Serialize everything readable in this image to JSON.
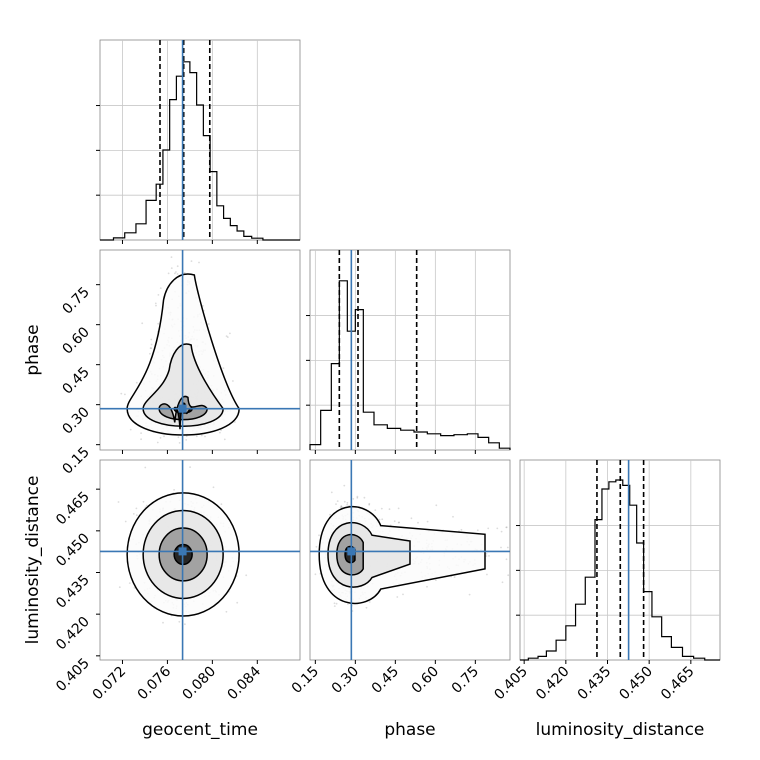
{
  "chart_data": {
    "type": "corner",
    "truth_color": "#3a77b4",
    "quantile_color": "#000000",
    "parameters": [
      {
        "name": "geocent_time",
        "range": [
          0.07,
          0.0878
        ],
        "ticks": [
          "0.072",
          "0.076",
          "0.080",
          "0.084"
        ],
        "truth": 0.07735,
        "quantiles": [
          0.07534,
          0.07745,
          0.07977
        ],
        "histogram": {
          "bin_edges": [
            0.07,
            0.0712,
            0.0722,
            0.0732,
            0.0741,
            0.075,
            0.0756,
            0.0762,
            0.0768,
            0.0774,
            0.078,
            0.0786,
            0.0792,
            0.0798,
            0.0804,
            0.081,
            0.0816,
            0.0822,
            0.0828,
            0.0835,
            0.0845,
            0.0855,
            0.0878
          ],
          "counts": [
            0.0,
            0.012,
            0.04,
            0.09,
            0.22,
            0.31,
            0.5,
            0.78,
            0.91,
            0.99,
            0.93,
            0.75,
            0.58,
            0.38,
            0.19,
            0.12,
            0.08,
            0.05,
            0.02,
            0.01,
            0.0,
            0.0
          ]
        }
      },
      {
        "name": "phase",
        "range": [
          0.13,
          0.88
        ],
        "ticks": [
          "0.15",
          "0.30",
          "0.45",
          "0.60",
          "0.75"
        ],
        "truth": 0.285,
        "quantiles": [
          0.24,
          0.31,
          0.53
        ],
        "histogram": {
          "bin_edges": [
            0.13,
            0.17,
            0.21,
            0.24,
            0.27,
            0.3,
            0.33,
            0.37,
            0.42,
            0.47,
            0.52,
            0.57,
            0.62,
            0.67,
            0.72,
            0.76,
            0.8,
            0.84,
            0.88
          ],
          "counts": [
            0.03,
            0.22,
            0.48,
            0.94,
            0.66,
            0.78,
            0.21,
            0.14,
            0.12,
            0.11,
            0.1,
            0.09,
            0.08,
            0.085,
            0.09,
            0.07,
            0.04,
            0.01
          ]
        }
      },
      {
        "name": "luminosity_distance",
        "range": [
          0.4035,
          0.4755
        ],
        "ticks": [
          "0.405",
          "0.420",
          "0.435",
          "0.450",
          "0.465"
        ],
        "truth": 0.4426,
        "quantiles": [
          0.4312,
          0.4396,
          0.448
        ],
        "histogram": {
          "bin_edges": [
            0.4035,
            0.4065,
            0.41,
            0.413,
            0.4165,
            0.42,
            0.4235,
            0.427,
            0.4305,
            0.433,
            0.4355,
            0.438,
            0.4405,
            0.443,
            0.4455,
            0.448,
            0.451,
            0.4545,
            0.458,
            0.462,
            0.466,
            0.47,
            0.4755
          ],
          "counts": [
            0.0,
            0.01,
            0.02,
            0.05,
            0.11,
            0.19,
            0.31,
            0.46,
            0.78,
            0.95,
            0.99,
            1.0,
            0.97,
            0.86,
            0.65,
            0.38,
            0.24,
            0.13,
            0.07,
            0.02,
            0.01,
            0.0
          ]
        }
      }
    ],
    "pairs": [
      {
        "x": "geocent_time",
        "y": "phase"
      },
      {
        "x": "geocent_time",
        "y": "luminosity_distance"
      },
      {
        "x": "phase",
        "y": "luminosity_distance"
      }
    ]
  }
}
